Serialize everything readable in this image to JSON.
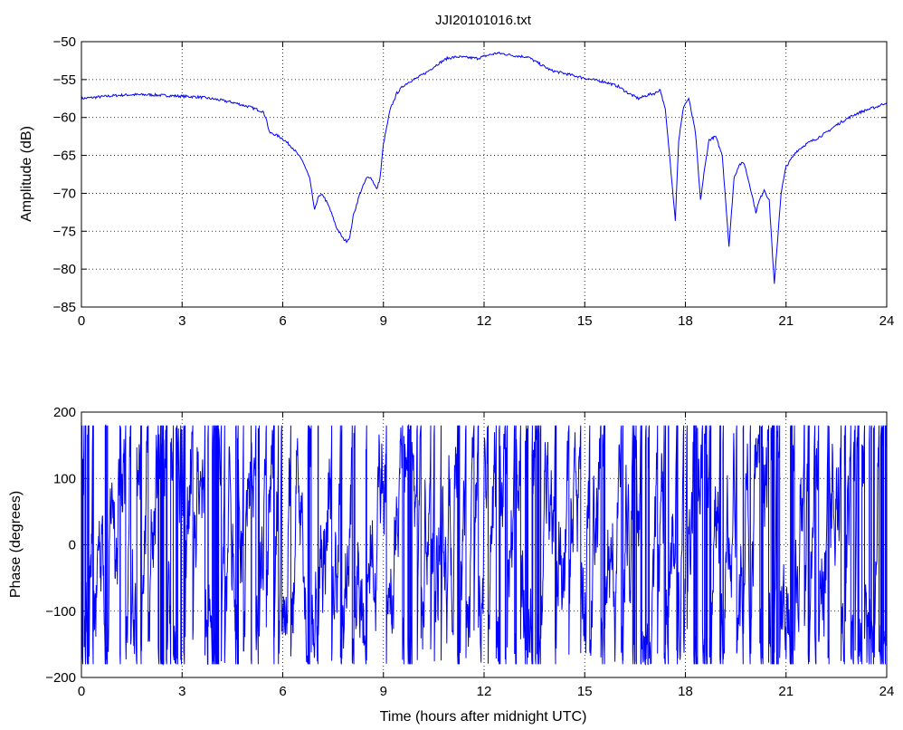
{
  "chart_data": [
    {
      "type": "line",
      "title": "JJI20101016.txt",
      "xlabel": "",
      "ylabel": "Amplitude (dB)",
      "xlim": [
        0,
        24
      ],
      "ylim": [
        -85,
        -50
      ],
      "xticks": [
        "0",
        "3",
        "6",
        "9",
        "12",
        "15",
        "18",
        "21",
        "24"
      ],
      "yticks": [
        "-50",
        "-55",
        "-60",
        "-65",
        "-70",
        "-75",
        "-80",
        "-85"
      ],
      "grid": true,
      "series": [
        {
          "color": "#0000ff",
          "x": [
            0,
            0.5,
            1.0,
            1.5,
            2.0,
            2.5,
            3.0,
            3.5,
            4.0,
            4.5,
            5.0,
            5.4,
            5.5,
            5.6,
            5.8,
            6.0,
            6.3,
            6.6,
            6.8,
            6.95,
            7.05,
            7.2,
            7.4,
            7.6,
            7.8,
            7.9,
            8.0,
            8.1,
            8.3,
            8.5,
            8.6,
            8.7,
            8.8,
            8.9,
            9.0,
            9.2,
            9.4,
            9.6,
            9.8,
            10.0,
            10.3,
            10.6,
            10.9,
            11.2,
            11.5,
            11.8,
            12.1,
            12.4,
            12.7,
            13.0,
            13.3,
            13.6,
            14.0,
            14.4,
            14.8,
            15.2,
            15.6,
            16.0,
            16.3,
            16.6,
            16.9,
            17.1,
            17.25,
            17.4,
            17.55,
            17.7,
            17.8,
            17.95,
            18.1,
            18.3,
            18.45,
            18.55,
            18.7,
            18.9,
            19.1,
            19.3,
            19.45,
            19.6,
            19.75,
            19.95,
            20.1,
            20.2,
            20.35,
            20.5,
            20.65,
            20.75,
            20.85,
            21.0,
            21.3,
            21.6,
            21.9,
            22.2,
            22.5,
            22.8,
            23.1,
            23.4,
            23.7,
            24.0
          ],
          "values": [
            -57.5,
            -57.3,
            -57.1,
            -57.0,
            -57.0,
            -57.1,
            -57.2,
            -57.3,
            -57.6,
            -58.0,
            -58.6,
            -59.2,
            -60.0,
            -62.0,
            -62.3,
            -62.8,
            -64.0,
            -65.8,
            -68.0,
            -72.3,
            -70.5,
            -70.2,
            -72.0,
            -74.5,
            -76.0,
            -76.3,
            -75.8,
            -73.0,
            -70.0,
            -68.0,
            -67.8,
            -68.5,
            -69.5,
            -68.0,
            -63.5,
            -59.0,
            -56.8,
            -55.8,
            -55.2,
            -54.8,
            -54.0,
            -53.0,
            -52.2,
            -52.0,
            -52.1,
            -52.2,
            -51.8,
            -51.5,
            -51.7,
            -51.9,
            -52.0,
            -52.8,
            -53.8,
            -54.2,
            -54.6,
            -55.0,
            -55.3,
            -55.9,
            -56.8,
            -57.5,
            -57.0,
            -56.8,
            -56.3,
            -59.0,
            -66.0,
            -73.5,
            -63.0,
            -58.5,
            -57.5,
            -62.0,
            -71.0,
            -67.5,
            -63.0,
            -62.5,
            -65.0,
            -77.0,
            -68.0,
            -66.2,
            -66.0,
            -69.5,
            -72.5,
            -71.0,
            -69.5,
            -71.0,
            -82.0,
            -76.0,
            -70.0,
            -66.5,
            -64.5,
            -63.5,
            -62.8,
            -62.0,
            -61.0,
            -60.2,
            -59.5,
            -59.0,
            -58.6,
            -58.0
          ]
        }
      ]
    },
    {
      "type": "line",
      "title": "",
      "xlabel": "Time (hours after midnight UTC)",
      "ylabel": "Phase (degrees)",
      "xlim": [
        0,
        24
      ],
      "ylim": [
        -200,
        200
      ],
      "xticks": [
        "0",
        "3",
        "6",
        "9",
        "12",
        "15",
        "18",
        "21",
        "24"
      ],
      "yticks": [
        "200",
        "100",
        "0",
        "-100",
        "-200"
      ],
      "grid": true,
      "series": [
        {
          "color": "#0000ff",
          "wraps_at": [
            -180,
            180
          ],
          "x": [
            0,
            24
          ],
          "values_range": [
            -180,
            180
          ]
        }
      ]
    }
  ]
}
